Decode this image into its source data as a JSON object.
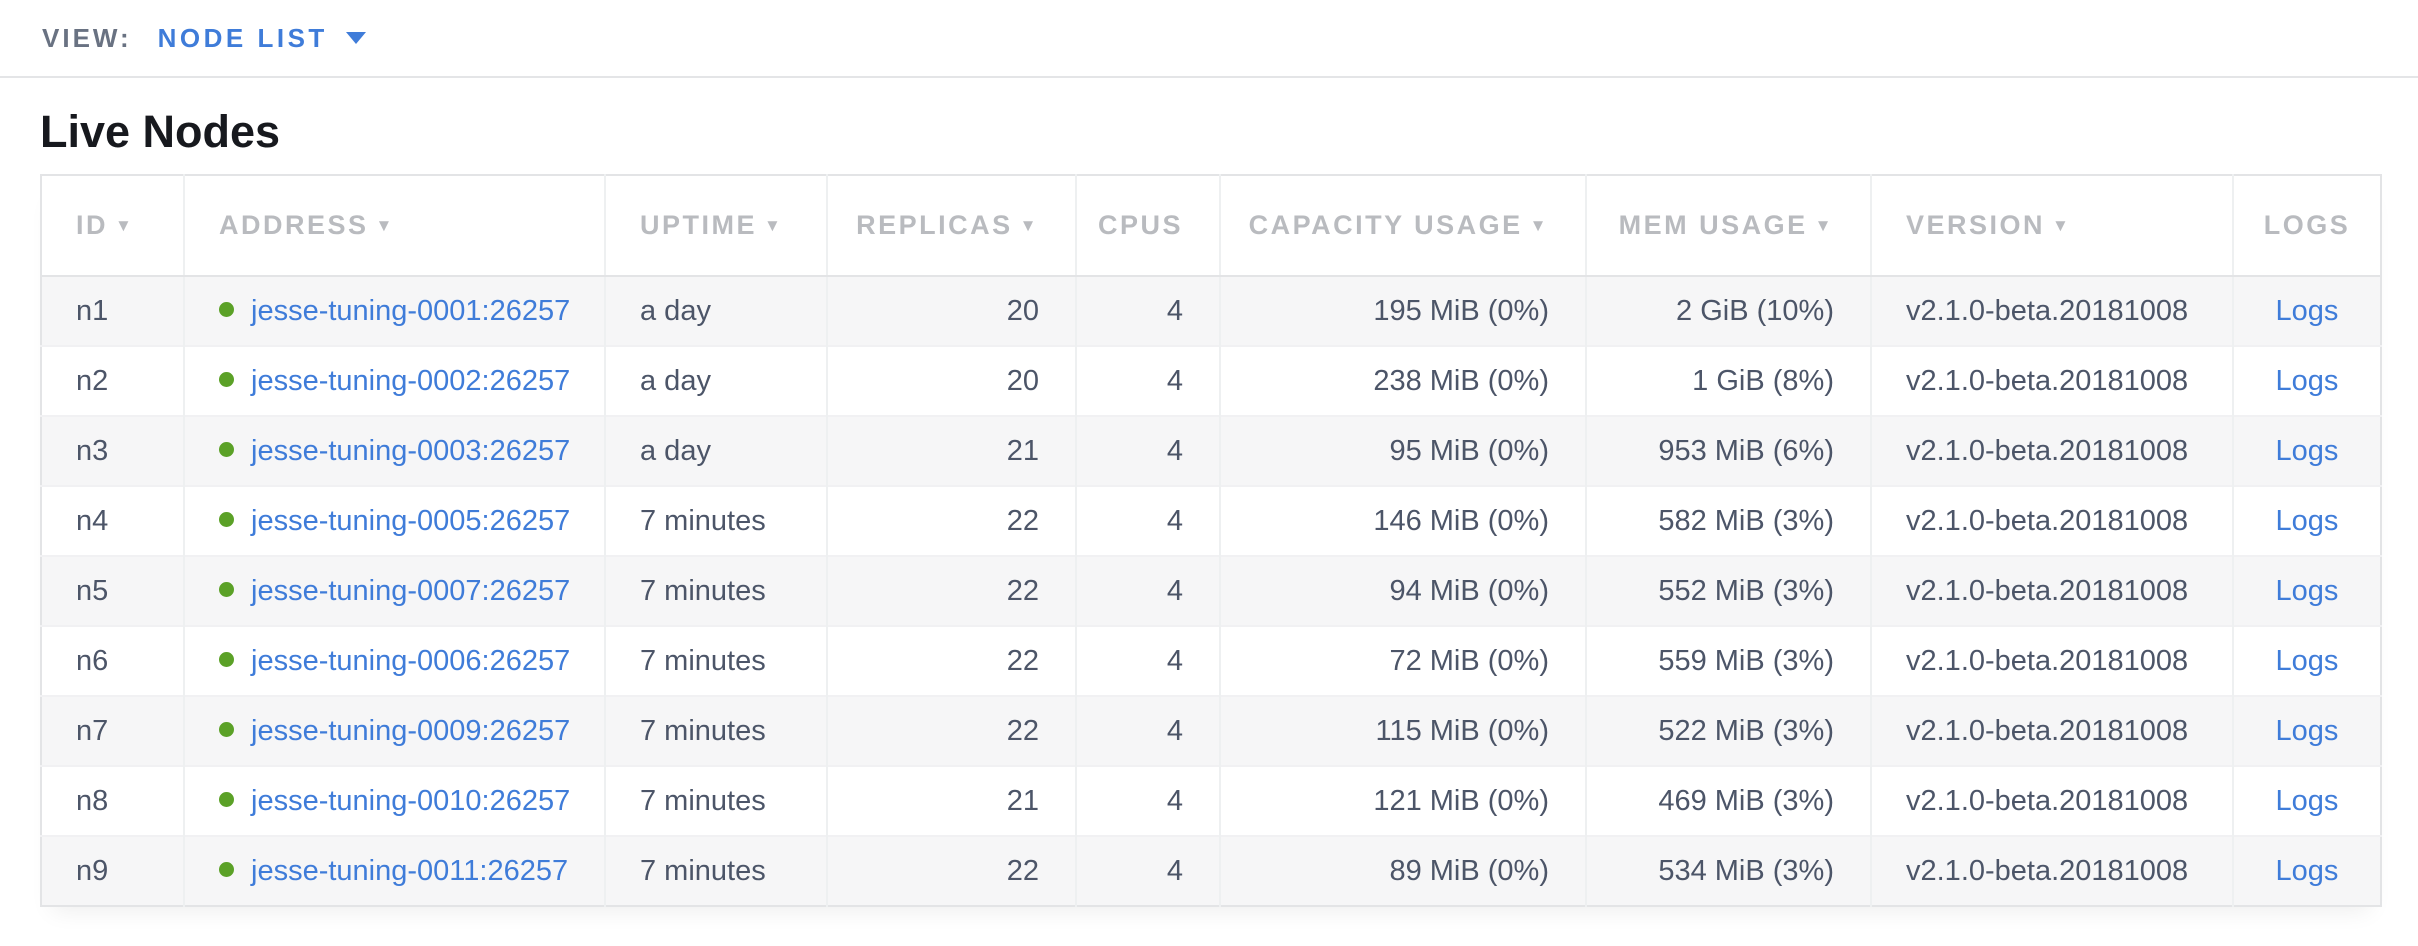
{
  "view_bar": {
    "label": "VIEW:",
    "selected": "NODE LIST"
  },
  "page": {
    "title": "Live Nodes"
  },
  "colors": {
    "link": "#3f7cd9",
    "live_dot": "#5ba127",
    "header_text": "#b9bbbf",
    "row_stripe": "#f6f6f7",
    "cell_text": "#4c5568"
  },
  "table": {
    "columns": [
      {
        "field": "id",
        "label": "ID",
        "sortable": true,
        "align": "left"
      },
      {
        "field": "address",
        "label": "ADDRESS",
        "sortable": true,
        "align": "left"
      },
      {
        "field": "uptime",
        "label": "UPTIME",
        "sortable": true,
        "align": "left"
      },
      {
        "field": "replicas",
        "label": "REPLICAS",
        "sortable": true,
        "align": "right"
      },
      {
        "field": "cpus",
        "label": "CPUS",
        "sortable": false,
        "align": "right"
      },
      {
        "field": "capacity",
        "label": "CAPACITY USAGE",
        "sortable": true,
        "align": "right"
      },
      {
        "field": "mem",
        "label": "MEM USAGE",
        "sortable": true,
        "align": "right"
      },
      {
        "field": "version",
        "label": "VERSION",
        "sortable": true,
        "align": "left"
      },
      {
        "field": "logs",
        "label": "LOGS",
        "sortable": false,
        "align": "center"
      }
    ],
    "rows": [
      {
        "id": "n1",
        "address": "jesse-tuning-0001:26257",
        "uptime": "a day",
        "replicas": "20",
        "cpus": "4",
        "capacity": "195 MiB (0%)",
        "mem": "2 GiB (10%)",
        "version": "v2.1.0-beta.20181008",
        "logs": "Logs"
      },
      {
        "id": "n2",
        "address": "jesse-tuning-0002:26257",
        "uptime": "a day",
        "replicas": "20",
        "cpus": "4",
        "capacity": "238 MiB (0%)",
        "mem": "1 GiB (8%)",
        "version": "v2.1.0-beta.20181008",
        "logs": "Logs"
      },
      {
        "id": "n3",
        "address": "jesse-tuning-0003:26257",
        "uptime": "a day",
        "replicas": "21",
        "cpus": "4",
        "capacity": "95 MiB (0%)",
        "mem": "953 MiB (6%)",
        "version": "v2.1.0-beta.20181008",
        "logs": "Logs"
      },
      {
        "id": "n4",
        "address": "jesse-tuning-0005:26257",
        "uptime": "7 minutes",
        "replicas": "22",
        "cpus": "4",
        "capacity": "146 MiB (0%)",
        "mem": "582 MiB (3%)",
        "version": "v2.1.0-beta.20181008",
        "logs": "Logs"
      },
      {
        "id": "n5",
        "address": "jesse-tuning-0007:26257",
        "uptime": "7 minutes",
        "replicas": "22",
        "cpus": "4",
        "capacity": "94 MiB (0%)",
        "mem": "552 MiB (3%)",
        "version": "v2.1.0-beta.20181008",
        "logs": "Logs"
      },
      {
        "id": "n6",
        "address": "jesse-tuning-0006:26257",
        "uptime": "7 minutes",
        "replicas": "22",
        "cpus": "4",
        "capacity": "72 MiB (0%)",
        "mem": "559 MiB (3%)",
        "version": "v2.1.0-beta.20181008",
        "logs": "Logs"
      },
      {
        "id": "n7",
        "address": "jesse-tuning-0009:26257",
        "uptime": "7 minutes",
        "replicas": "22",
        "cpus": "4",
        "capacity": "115 MiB (0%)",
        "mem": "522 MiB (3%)",
        "version": "v2.1.0-beta.20181008",
        "logs": "Logs"
      },
      {
        "id": "n8",
        "address": "jesse-tuning-0010:26257",
        "uptime": "7 minutes",
        "replicas": "21",
        "cpus": "4",
        "capacity": "121 MiB (0%)",
        "mem": "469 MiB (3%)",
        "version": "v2.1.0-beta.20181008",
        "logs": "Logs"
      },
      {
        "id": "n9",
        "address": "jesse-tuning-0011:26257",
        "uptime": "7 minutes",
        "replicas": "22",
        "cpus": "4",
        "capacity": "89 MiB (0%)",
        "mem": "534 MiB (3%)",
        "version": "v2.1.0-beta.20181008",
        "logs": "Logs"
      }
    ]
  }
}
